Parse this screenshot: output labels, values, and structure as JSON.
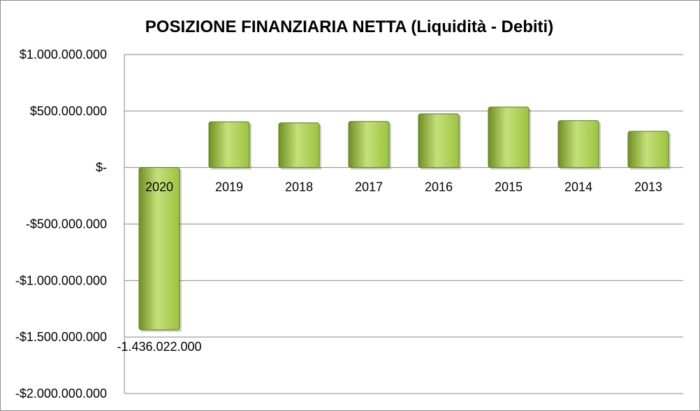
{
  "chart_data": {
    "type": "bar",
    "title": "POSIZIONE FINANZIARIA NETTA (Liquidità - Debiti)",
    "xlabel": "",
    "ylabel": "",
    "categories": [
      "2020",
      "2019",
      "2018",
      "2017",
      "2016",
      "2015",
      "2014",
      "2013"
    ],
    "values": [
      -1436022000,
      405000000,
      395000000,
      408000000,
      475000000,
      535000000,
      415000000,
      320000000
    ],
    "data_labels": [
      "-1.436.022.000",
      "",
      "",
      "",
      "",
      "",
      "",
      ""
    ],
    "ylim": [
      -2000000000,
      1000000000
    ],
    "y_ticks": [
      1000000000,
      500000000,
      0,
      -500000000,
      -1000000000,
      -1500000000,
      -2000000000
    ],
    "y_tick_labels": [
      "$1.000.000.000",
      "$500.000.000",
      "$-",
      "-$500.000.000",
      "-$1.000.000.000",
      "-$1.500.000.000",
      "-$2.000.000.000"
    ],
    "grid": true,
    "legend": "none",
    "colors": {
      "bar_light": "#c5e07a",
      "bar_mid": "#9bc33f",
      "bar_dark": "#6f8f22",
      "bar_edge": "#5c7a1c",
      "grid": "#888888"
    }
  }
}
